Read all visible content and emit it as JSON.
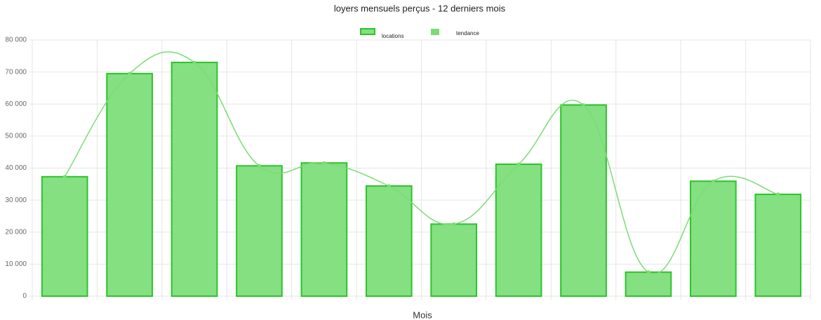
{
  "chart_data": {
    "type": "bar",
    "title": "loyers mensuels perçus - 12 derniers mois",
    "x_label": "Mois",
    "categories": [
      null,
      null,
      null,
      null,
      null,
      null,
      null,
      null,
      null,
      null,
      null,
      null
    ],
    "series": [
      {
        "name": "locations",
        "type": "bar",
        "color": "#84e081",
        "border_color": "#2bc42b",
        "values": [
          37300,
          69500,
          73000,
          40700,
          41600,
          34400,
          22500,
          41200,
          59700,
          7500,
          35900,
          31800
        ]
      },
      {
        "name": "tendance",
        "type": "line",
        "color": "#7bdc75",
        "values": [
          37300,
          69500,
          73000,
          40700,
          41600,
          34400,
          22500,
          41200,
          59700,
          7500,
          35900,
          31800
        ]
      }
    ],
    "ylim": [
      0,
      80000
    ],
    "yticks": [
      {
        "value": 0,
        "label": "0"
      },
      {
        "value": 10000,
        "label": "10 000"
      },
      {
        "value": 20000,
        "label": "20 000"
      },
      {
        "value": 30000,
        "label": "30 000"
      },
      {
        "value": 40000,
        "label": "40 000"
      },
      {
        "value": 50000,
        "label": "50 000"
      },
      {
        "value": 60000,
        "label": "60 000"
      },
      {
        "value": 70000,
        "label": "70 000"
      },
      {
        "value": 80000,
        "label": "80 000"
      }
    ],
    "grid": true
  }
}
